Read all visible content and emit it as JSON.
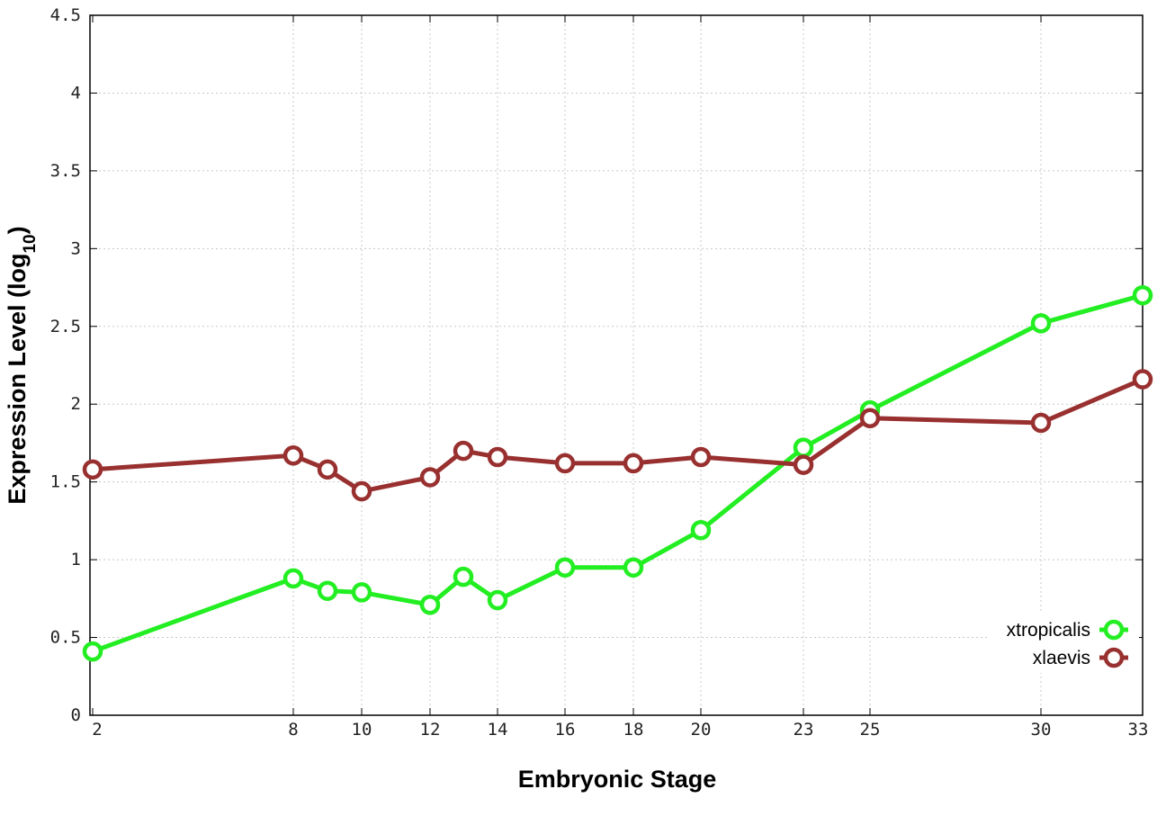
{
  "chart_data": {
    "type": "line",
    "title": "",
    "xlabel": "Embryonic Stage",
    "ylabel_main": "Expression Level (log",
    "ylabel_sub": "10",
    "ylabel_close": ")",
    "x_scale": "categorical",
    "categories": [
      "2",
      "8",
      "9",
      "10",
      "12",
      "13",
      "14",
      "16",
      "18",
      "20",
      "23",
      "25",
      "30",
      "33"
    ],
    "x_tick_labels": [
      "2",
      "8",
      "10",
      "12",
      "14",
      "16",
      "18",
      "20",
      "23",
      "25",
      "30",
      "33"
    ],
    "ylim": [
      0,
      4.5
    ],
    "y_ticks": [
      "0",
      "0.5",
      "1",
      "1.5",
      "2",
      "2.5",
      "3",
      "3.5",
      "4",
      "4.5"
    ],
    "grid": true,
    "legend_position": "bottom-right",
    "series": [
      {
        "name": "xtropicalis",
        "color": "#22ee22",
        "values": [
          0.41,
          0.88,
          0.8,
          0.79,
          0.71,
          0.89,
          0.74,
          0.95,
          0.95,
          1.19,
          1.72,
          1.96,
          2.52,
          2.7
        ]
      },
      {
        "name": "xlaevis",
        "color": "#993030",
        "values": [
          1.58,
          1.67,
          1.58,
          1.44,
          1.53,
          1.7,
          1.66,
          1.62,
          1.62,
          1.66,
          1.61,
          1.91,
          1.88,
          2.16
        ]
      }
    ]
  }
}
